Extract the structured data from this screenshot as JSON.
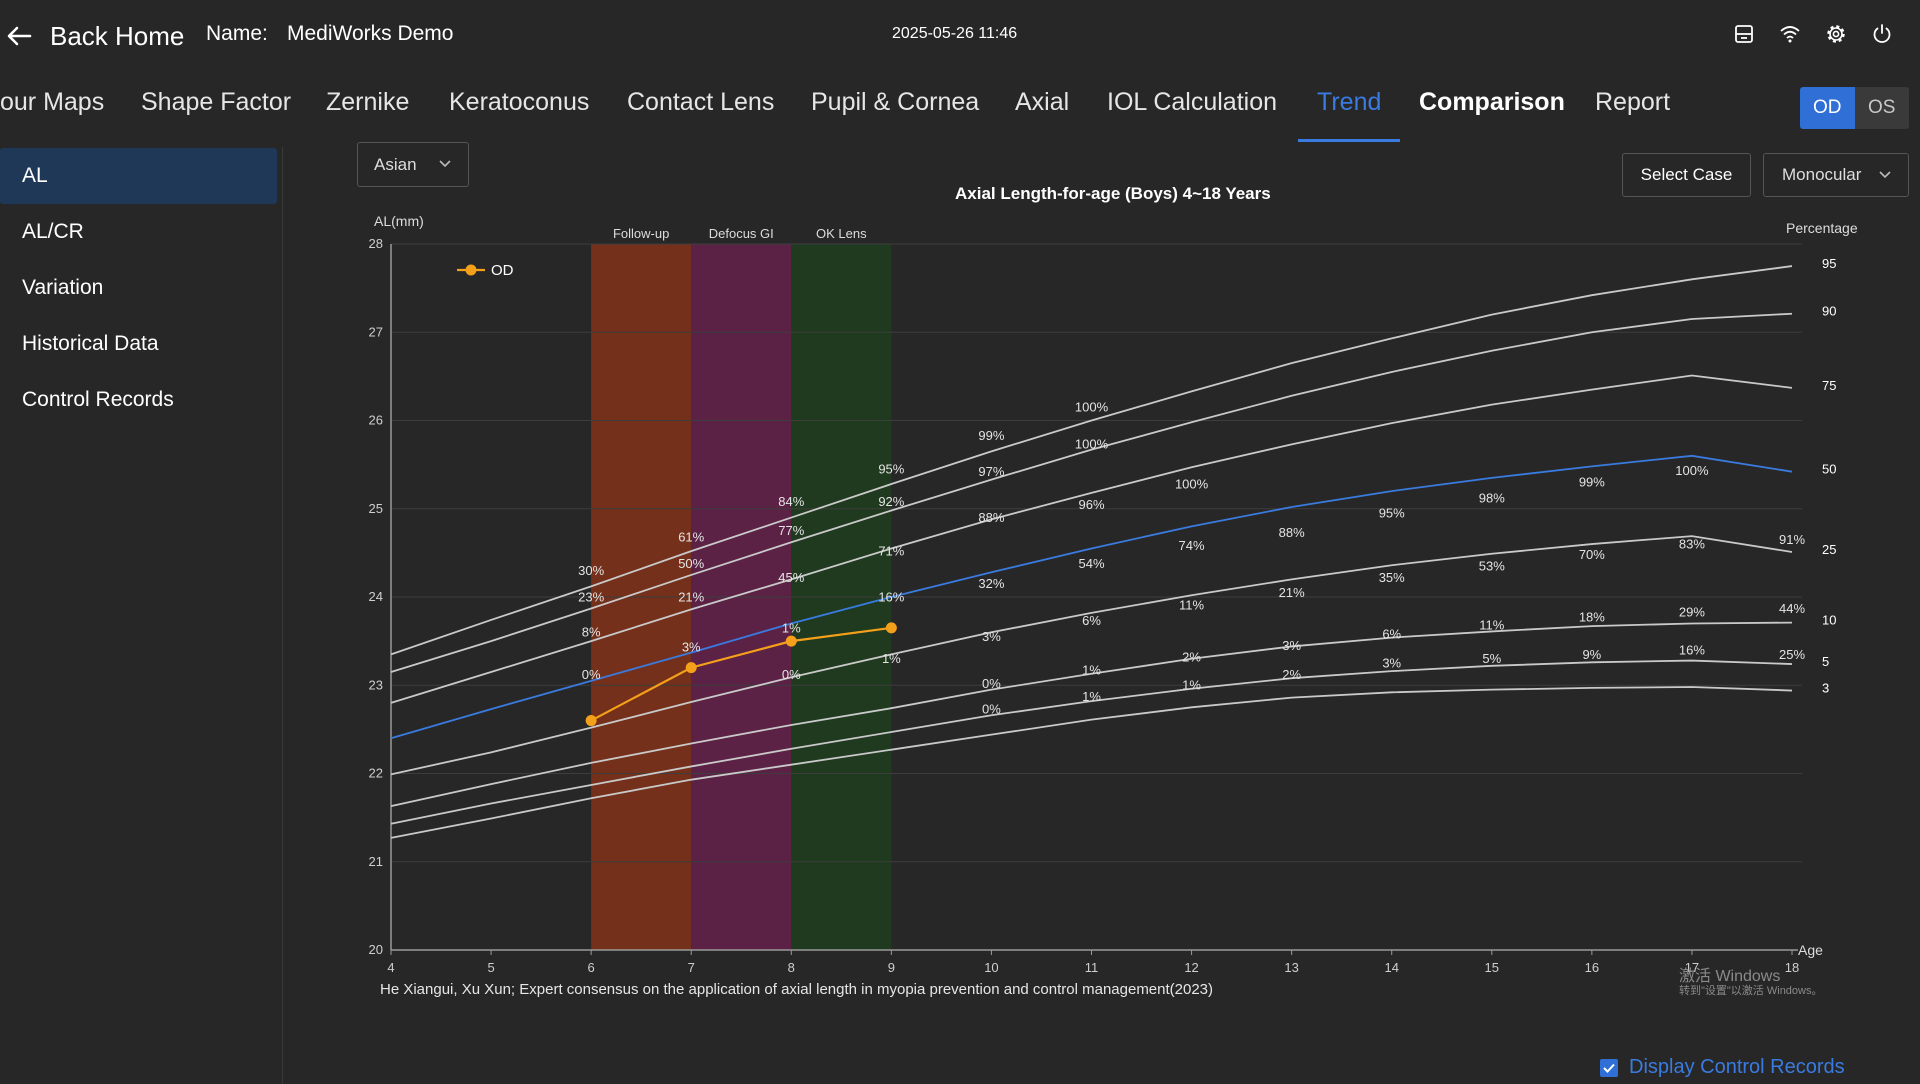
{
  "header": {
    "back_label": "Back Home",
    "name_label": "Name:",
    "name_value": "MediWorks Demo",
    "datetime": "2025-05-26 11:46",
    "icons": [
      "save-icon",
      "wifi-icon",
      "settings-icon",
      "power-icon"
    ]
  },
  "tabs": [
    {
      "label": "our Maps"
    },
    {
      "label": "Shape Factor"
    },
    {
      "label": "Zernike"
    },
    {
      "label": "Keratoconus"
    },
    {
      "label": "Contact Lens"
    },
    {
      "label": "Pupil & Cornea"
    },
    {
      "label": "Axial"
    },
    {
      "label": "IOL Calculation"
    },
    {
      "label": "Trend",
      "active": true
    },
    {
      "label": "Comparison"
    },
    {
      "label": "Report"
    }
  ],
  "eye_toggle": {
    "od": "OD",
    "os": "OS",
    "selected": "OD"
  },
  "sidebar": {
    "items": [
      {
        "label": "AL",
        "active": true
      },
      {
        "label": "AL/CR"
      },
      {
        "label": "Variation"
      },
      {
        "label": "Historical Data"
      },
      {
        "label": "Control Records"
      }
    ]
  },
  "controls": {
    "region": "Asian",
    "select_case": "Select Case",
    "mode": "Monocular",
    "display_control_records": "Display Control Records",
    "display_control_checked": true
  },
  "footer": {
    "reference": "He Xiangui, Xu Xun; Expert consensus on the application of axial length in myopia prevention and control management(2023)",
    "watermark_line1": "激活 Windows",
    "watermark_line2": "转到\"设置\"以激活 Windows。"
  },
  "colors": {
    "accent": "#3a7be0",
    "od_series": "#f5a01a",
    "p50_line": "#3a7be0",
    "percentile_line": "#c9c9c9",
    "followup_band": "#74301a",
    "defocus_band": "#5c2246",
    "oklens_band": "#1f3a1f"
  },
  "chart_data": {
    "type": "line",
    "title": "Axial Length-for-age (Boys) 4~18 Years",
    "ylabel": "AL(mm)",
    "xlabel": "Age",
    "right_label": "Percentage",
    "xlim": [
      4,
      18
    ],
    "ylim": [
      20,
      28
    ],
    "xticks": [
      4,
      5,
      6,
      7,
      8,
      9,
      10,
      11,
      12,
      13,
      14,
      15,
      16,
      17,
      18
    ],
    "yticks": [
      20,
      21,
      22,
      23,
      24,
      25,
      26,
      27,
      28
    ],
    "grid": true,
    "legend_position": "top-left",
    "bands": [
      {
        "label": "Follow-up",
        "x_start": 6,
        "x_end": 7,
        "color": "#74301a"
      },
      {
        "label": "Defocus GI",
        "x_start": 7,
        "x_end": 8,
        "color": "#5c2246"
      },
      {
        "label": "OK Lens",
        "x_start": 8,
        "x_end": 9,
        "color": "#1f3a1f"
      }
    ],
    "x": [
      4,
      5,
      6,
      7,
      8,
      9,
      10,
      11,
      12,
      13,
      14,
      15,
      16,
      17,
      18
    ],
    "percentiles": [
      {
        "name": "95",
        "values": [
          23.35,
          23.74,
          24.12,
          24.52,
          24.9,
          25.28,
          25.65,
          26.0,
          26.33,
          26.65,
          26.93,
          27.2,
          27.42,
          27.6,
          27.75
        ]
      },
      {
        "name": "90",
        "values": [
          23.15,
          23.5,
          23.87,
          24.25,
          24.62,
          24.98,
          25.33,
          25.67,
          25.98,
          26.28,
          26.55,
          26.79,
          27.0,
          27.15,
          27.21
        ]
      },
      {
        "name": "75",
        "values": [
          22.8,
          23.15,
          23.5,
          23.86,
          24.2,
          24.55,
          24.88,
          25.18,
          25.47,
          25.73,
          25.97,
          26.18,
          26.35,
          26.51,
          26.37
        ]
      },
      {
        "name": "50",
        "values": [
          22.4,
          22.73,
          23.05,
          23.37,
          23.7,
          24.0,
          24.28,
          24.55,
          24.8,
          25.02,
          25.2,
          25.35,
          25.48,
          25.6,
          25.42
        ]
      },
      {
        "name": "25",
        "values": [
          21.99,
          22.24,
          22.52,
          22.81,
          23.09,
          23.35,
          23.6,
          23.82,
          24.02,
          24.2,
          24.36,
          24.49,
          24.6,
          24.69,
          24.51
        ]
      },
      {
        "name": "10",
        "values": [
          21.63,
          21.88,
          22.12,
          22.34,
          22.55,
          22.74,
          22.95,
          23.13,
          23.3,
          23.44,
          23.54,
          23.61,
          23.67,
          23.7,
          23.71
        ]
      },
      {
        "name": "5",
        "values": [
          21.43,
          21.66,
          21.87,
          22.08,
          22.28,
          22.47,
          22.66,
          22.82,
          22.96,
          23.08,
          23.16,
          23.22,
          23.26,
          23.28,
          23.24
        ]
      },
      {
        "name": "3",
        "values": [
          21.27,
          21.49,
          21.72,
          21.93,
          22.1,
          22.27,
          22.44,
          22.61,
          22.75,
          22.86,
          22.92,
          22.95,
          22.97,
          22.98,
          22.94
        ]
      }
    ],
    "series": [
      {
        "name": "OD",
        "x": [
          6,
          7,
          8,
          9
        ],
        "values": [
          22.6,
          23.2,
          23.5,
          23.65
        ]
      }
    ],
    "annotations": [
      {
        "x": 6,
        "y": 24.25,
        "text": "30%"
      },
      {
        "x": 6,
        "y": 23.95,
        "text": "23%"
      },
      {
        "x": 6,
        "y": 23.55,
        "text": "8%"
      },
      {
        "x": 6,
        "y": 23.07,
        "text": "0%"
      },
      {
        "x": 7,
        "y": 24.63,
        "text": "61%"
      },
      {
        "x": 7,
        "y": 24.33,
        "text": "50%"
      },
      {
        "x": 7,
        "y": 23.95,
        "text": "21%"
      },
      {
        "x": 7,
        "y": 23.38,
        "text": "3%"
      },
      {
        "x": 8,
        "y": 25.03,
        "text": "84%"
      },
      {
        "x": 8,
        "y": 24.7,
        "text": "77%"
      },
      {
        "x": 8,
        "y": 24.17,
        "text": "45%"
      },
      {
        "x": 8,
        "y": 23.6,
        "text": "1%"
      },
      {
        "x": 8,
        "y": 23.07,
        "text": "0%"
      },
      {
        "x": 9,
        "y": 25.4,
        "text": "95%"
      },
      {
        "x": 9,
        "y": 25.03,
        "text": "92%"
      },
      {
        "x": 9,
        "y": 24.47,
        "text": "71%"
      },
      {
        "x": 9,
        "y": 23.95,
        "text": "16%"
      },
      {
        "x": 9,
        "y": 23.25,
        "text": "1%"
      },
      {
        "x": 10,
        "y": 25.78,
        "text": "99%"
      },
      {
        "x": 10,
        "y": 25.37,
        "text": "97%"
      },
      {
        "x": 10,
        "y": 24.85,
        "text": "88%"
      },
      {
        "x": 10,
        "y": 24.1,
        "text": "32%"
      },
      {
        "x": 10,
        "y": 23.5,
        "text": "3%"
      },
      {
        "x": 10,
        "y": 22.97,
        "text": "0%"
      },
      {
        "x": 10,
        "y": 22.68,
        "text": "0%"
      },
      {
        "x": 11,
        "y": 26.1,
        "text": "100%"
      },
      {
        "x": 11,
        "y": 25.68,
        "text": "100%"
      },
      {
        "x": 11,
        "y": 25.0,
        "text": "96%"
      },
      {
        "x": 11,
        "y": 24.33,
        "text": "54%"
      },
      {
        "x": 11,
        "y": 23.68,
        "text": "6%"
      },
      {
        "x": 11,
        "y": 23.12,
        "text": "1%"
      },
      {
        "x": 11,
        "y": 22.82,
        "text": "1%"
      },
      {
        "x": 12,
        "y": 25.23,
        "text": "100%"
      },
      {
        "x": 12,
        "y": 24.53,
        "text": "74%"
      },
      {
        "x": 12,
        "y": 23.86,
        "text": "11%"
      },
      {
        "x": 12,
        "y": 23.27,
        "text": "2%"
      },
      {
        "x": 12,
        "y": 22.95,
        "text": "1%"
      },
      {
        "x": 13,
        "y": 24.68,
        "text": "88%"
      },
      {
        "x": 13,
        "y": 24.0,
        "text": "21%"
      },
      {
        "x": 13,
        "y": 23.4,
        "text": "3%"
      },
      {
        "x": 13,
        "y": 23.07,
        "text": "2%"
      },
      {
        "x": 14,
        "y": 24.9,
        "text": "95%"
      },
      {
        "x": 14,
        "y": 24.17,
        "text": "35%"
      },
      {
        "x": 14,
        "y": 23.53,
        "text": "6%"
      },
      {
        "x": 14,
        "y": 23.2,
        "text": "3%"
      },
      {
        "x": 15,
        "y": 25.07,
        "text": "98%"
      },
      {
        "x": 15,
        "y": 24.3,
        "text": "53%"
      },
      {
        "x": 15,
        "y": 23.63,
        "text": "11%"
      },
      {
        "x": 15,
        "y": 23.25,
        "text": "5%"
      },
      {
        "x": 16,
        "y": 25.25,
        "text": "99%"
      },
      {
        "x": 16,
        "y": 24.43,
        "text": "70%"
      },
      {
        "x": 16,
        "y": 23.72,
        "text": "18%"
      },
      {
        "x": 16,
        "y": 23.3,
        "text": "9%"
      },
      {
        "x": 17,
        "y": 25.38,
        "text": "100%"
      },
      {
        "x": 17,
        "y": 24.55,
        "text": "83%"
      },
      {
        "x": 17,
        "y": 23.78,
        "text": "29%"
      },
      {
        "x": 17,
        "y": 23.35,
        "text": "16%"
      },
      {
        "x": 18,
        "y": 24.6,
        "text": "91%"
      },
      {
        "x": 18,
        "y": 23.82,
        "text": "44%"
      },
      {
        "x": 18,
        "y": 23.3,
        "text": "25%"
      }
    ]
  }
}
